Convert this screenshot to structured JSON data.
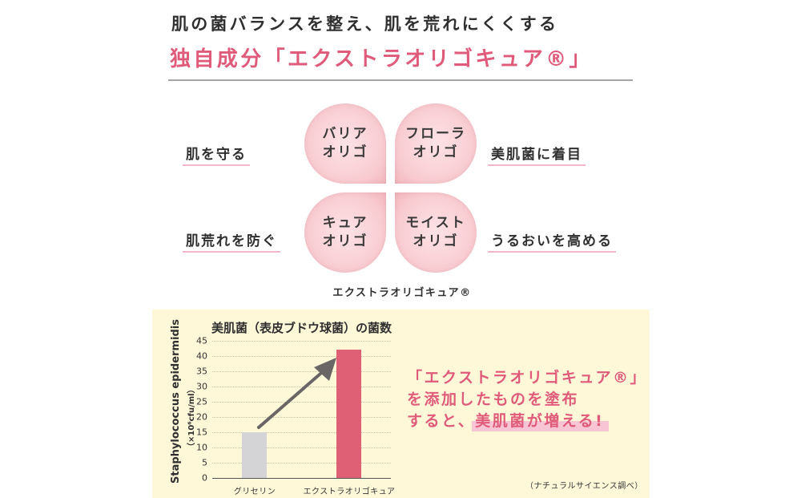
{
  "header": {
    "headline": "肌の菌バランスを整え、肌を荒れにくくする",
    "title": "独自成分「エクストラオリゴキュア®」"
  },
  "features": {
    "left_top": "肌を守る",
    "left_bottom": "肌荒れを防ぐ",
    "right_top": "美肌菌に着目",
    "right_bottom": "うるおいを高める"
  },
  "petals": [
    {
      "line1": "バリア",
      "line2": "オリゴ"
    },
    {
      "line1": "フローラ",
      "line2": "オリゴ"
    },
    {
      "line1": "キュア",
      "line2": "オリゴ"
    },
    {
      "line1": "モイスト",
      "line2": "オリゴ"
    }
  ],
  "petal_caption": "エクストラオリゴキュア®",
  "callout": {
    "line1": "「エクストラオリゴキュア®」",
    "line2": "を添加したものを塗布",
    "line3_prefix": "すると、",
    "line3_highlight": "美肌菌が増える!"
  },
  "source_note": "（ナチュラルサイエンス調べ）",
  "colors": {
    "accent_pink": "#e05a7a",
    "bar_glycerin": "#d4d4d6",
    "bar_extra": "#df5f75",
    "panel_bg": "#fef8d9",
    "arrow": "#6b6666"
  },
  "chart_data": {
    "type": "bar",
    "title": "美肌菌（表皮ブドウ球菌）の菌数",
    "xlabel": "",
    "ylabel": "Staphylococcus epidermidis",
    "yunit": "（×10⁶cfu/ml）",
    "categories": [
      "グリセリン",
      "エクストラオリゴキュア"
    ],
    "values": [
      15,
      42
    ],
    "ylim": [
      0,
      45
    ],
    "yticks": [
      0,
      5,
      10,
      15,
      20,
      25,
      30,
      35,
      40,
      45
    ],
    "grid": true,
    "annotations": [
      "arrow from グリセリン bar to エクストラオリゴキュア bar indicating increase"
    ]
  }
}
